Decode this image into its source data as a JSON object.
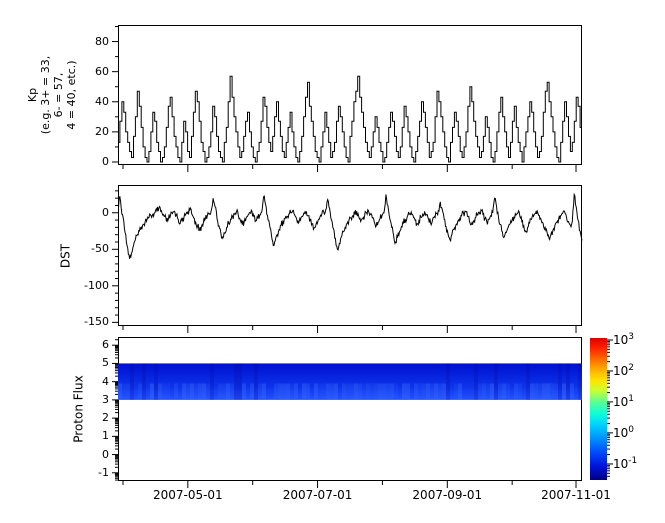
{
  "figure": {
    "background": "#ffffff",
    "axis_color": "#000000"
  },
  "xaxis": {
    "tick_labels": [
      "2007-05-01",
      "2007-07-01",
      "2007-09-01",
      "2007-11-01"
    ],
    "major_fracs": [
      0.1505,
      0.4301,
      0.7097,
      0.9871
    ],
    "minor_fracs": [
      0.0108,
      0.2903,
      0.5699,
      0.8495
    ],
    "range_start": "2007-03-29",
    "range_end": "2007-11-04"
  },
  "chart_data": [
    {
      "id": "kp",
      "type": "line",
      "line_style": "step",
      "color": "#000000",
      "ylabel": "Kp\n(e.g. 3+ = 33,\n6- = 57,\n4 = 40, etc.)",
      "ylim": [
        -2,
        91
      ],
      "yticks": [
        0,
        20,
        40,
        60,
        80
      ],
      "y_minor_step": 10,
      "values": [
        13,
        27,
        40,
        33,
        20,
        13,
        7,
        3,
        17,
        30,
        47,
        37,
        23,
        10,
        3,
        0,
        7,
        20,
        33,
        27,
        13,
        7,
        0,
        3,
        10,
        23,
        37,
        43,
        30,
        17,
        10,
        3,
        0,
        13,
        27,
        20,
        7,
        3,
        17,
        33,
        47,
        40,
        27,
        13,
        7,
        0,
        3,
        10,
        20,
        37,
        30,
        17,
        7,
        3,
        0,
        13,
        23,
        40,
        57,
        43,
        30,
        20,
        10,
        3,
        7,
        17,
        27,
        33,
        20,
        10,
        3,
        0,
        7,
        13,
        27,
        43,
        37,
        23,
        13,
        7,
        17,
        30,
        40,
        27,
        17,
        7,
        3,
        13,
        23,
        33,
        20,
        10,
        3,
        0,
        7,
        17,
        30,
        43,
        53,
        37,
        27,
        17,
        7,
        3,
        0,
        10,
        20,
        33,
        23,
        13,
        3,
        7,
        13,
        27,
        37,
        30,
        20,
        10,
        3,
        0,
        17,
        27,
        40,
        47,
        57,
        43,
        33,
        23,
        13,
        7,
        3,
        10,
        20,
        30,
        23,
        13,
        7,
        0,
        3,
        13,
        23,
        33,
        27,
        17,
        7,
        3,
        10,
        23,
        37,
        30,
        20,
        10,
        3,
        0,
        7,
        17,
        27,
        40,
        33,
        23,
        13,
        3,
        7,
        13,
        30,
        47,
        40,
        30,
        20,
        10,
        3,
        0,
        13,
        23,
        33,
        27,
        17,
        7,
        3,
        10,
        20,
        37,
        50,
        40,
        27,
        17,
        10,
        3,
        7,
        17,
        30,
        23,
        13,
        3,
        0,
        7,
        20,
        33,
        43,
        30,
        20,
        10,
        3,
        13,
        27,
        37,
        23,
        13,
        7,
        0,
        10,
        20,
        30,
        40,
        33,
        20,
        10,
        3,
        7,
        17,
        33,
        47,
        53,
        40,
        30,
        20,
        10,
        3,
        0,
        13,
        27,
        40,
        30,
        17,
        7,
        13,
        27,
        43,
        37,
        23
      ]
    },
    {
      "id": "dst",
      "type": "line",
      "line_style": "linear",
      "color": "#000000",
      "ylabel": "DST",
      "ylim": [
        -155,
        38
      ],
      "yticks": [
        0,
        -50,
        -100,
        -150
      ],
      "y_minor_step": 10,
      "values": [
        8,
        22,
        -2,
        -12,
        -30,
        -48,
        -63,
        -55,
        -45,
        -36,
        -30,
        -25,
        -20,
        -16,
        -12,
        -9,
        -6,
        -4,
        -2,
        0,
        3,
        6,
        2,
        -3,
        -5,
        -12,
        -8,
        -4,
        -1,
        2,
        -3,
        -9,
        -15,
        -11,
        -6,
        -2,
        1,
        4,
        -2,
        -7,
        -13,
        -18,
        -24,
        -19,
        -13,
        -8,
        -4,
        -1,
        3,
        20,
        8,
        -8,
        -18,
        -28,
        -35,
        -28,
        -20,
        -14,
        -9,
        -5,
        -2,
        1,
        -4,
        -10,
        -16,
        -12,
        -7,
        -3,
        0,
        2,
        -5,
        -11,
        -7,
        -3,
        1,
        22,
        12,
        -4,
        -15,
        -30,
        -45,
        -38,
        -30,
        -23,
        -17,
        -12,
        -8,
        -5,
        -2,
        0,
        3,
        -3,
        -8,
        -14,
        -10,
        -5,
        -1,
        2,
        -4,
        -9,
        -15,
        -21,
        -16,
        -11,
        -6,
        -2,
        1,
        4,
        18,
        6,
        -10,
        -22,
        -35,
        -50,
        -42,
        -33,
        -26,
        -20,
        -15,
        -10,
        -7,
        -4,
        -1,
        2,
        -5,
        -12,
        -8,
        -4,
        0,
        3,
        -2,
        -7,
        -13,
        -18,
        -13,
        -8,
        -4,
        0,
        25,
        10,
        -8,
        -20,
        -32,
        -40,
        -33,
        -26,
        -19,
        -14,
        -9,
        -5,
        -2,
        1,
        -4,
        -10,
        -15,
        -11,
        -6,
        -2,
        2,
        -3,
        -9,
        -14,
        -10,
        -5,
        -1,
        3,
        15,
        5,
        -9,
        -19,
        -29,
        -37,
        -30,
        -23,
        -17,
        -12,
        -8,
        -4,
        -1,
        2,
        -5,
        -11,
        -16,
        -12,
        -7,
        -3,
        1,
        4,
        -2,
        -8,
        -13,
        -9,
        -4,
        0,
        20,
        8,
        -6,
        -16,
        -26,
        -33,
        -27,
        -20,
        -15,
        -10,
        -6,
        -3,
        0,
        -5,
        -12,
        -18,
        -25,
        -20,
        -14,
        -9,
        -5,
        -1,
        2,
        -4,
        -10,
        -15,
        -20,
        -27,
        -35,
        -30,
        -24,
        -18,
        -13,
        -8,
        -4,
        -1,
        2,
        -6,
        -12,
        -17,
        -12,
        25,
        8,
        -10,
        -25,
        -38
      ]
    },
    {
      "id": "proton_flux",
      "type": "heatmap",
      "ylabel": "Proton Flux",
      "ylim": [
        -1.45,
        6.45
      ],
      "yticks": [
        -1,
        0,
        1,
        2,
        3,
        4,
        5,
        6
      ],
      "y_minor": "log-decade",
      "band": {
        "y_min": 3,
        "y_max": 5,
        "color_top": "#0010d2",
        "color_mid": "#0c32e8",
        "color_bottom": "#2453ff",
        "approx_flux_range": [
          0.05,
          0.3
        ]
      },
      "colorbar": {
        "scale": "log",
        "base_label": "10",
        "tick_exponents": [
          3,
          2,
          1,
          0,
          -1
        ],
        "major_fracs": [
          0.014,
          0.232,
          0.45,
          0.668,
          0.887
        ],
        "decade_frac": 0.2185,
        "gradient_stops": [
          [
            0,
            "#dc0000"
          ],
          [
            7,
            "#ff2000"
          ],
          [
            15,
            "#ff6c00"
          ],
          [
            23,
            "#ffb400"
          ],
          [
            30,
            "#ffe400"
          ],
          [
            37,
            "#c8ff32"
          ],
          [
            45,
            "#5aff96"
          ],
          [
            53,
            "#0fffd7"
          ],
          [
            61,
            "#00d2ff"
          ],
          [
            70,
            "#0096ff"
          ],
          [
            80,
            "#004eff"
          ],
          [
            90,
            "#0014dc"
          ],
          [
            100,
            "#000082"
          ]
        ]
      }
    }
  ]
}
